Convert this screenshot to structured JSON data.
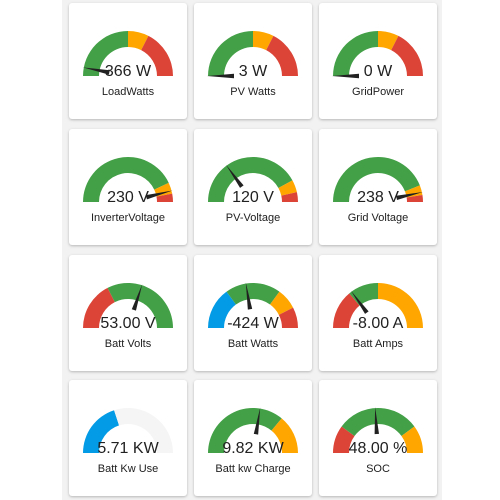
{
  "colors": {
    "green": "#43a047",
    "yellow": "#ffa600",
    "red": "#db4437",
    "blue": "#039be5",
    "empty": "#f5f5f5",
    "needle": "#212121"
  },
  "gauges": [
    {
      "label": "LoadWatts",
      "value_text": "366 W",
      "needle_fraction": 0.06,
      "segments": [
        [
          "green",
          0,
          0.5
        ],
        [
          "yellow",
          0.5,
          0.65
        ],
        [
          "red",
          0.65,
          1
        ]
      ]
    },
    {
      "label": "PV Watts",
      "value_text": "3 W",
      "needle_fraction": 0.0,
      "segments": [
        [
          "green",
          0,
          0.5
        ],
        [
          "yellow",
          0.5,
          0.65
        ],
        [
          "red",
          0.65,
          1
        ]
      ]
    },
    {
      "label": "GridPower",
      "value_text": "0 W",
      "needle_fraction": 0.0,
      "segments": [
        [
          "green",
          0,
          0.5
        ],
        [
          "yellow",
          0.5,
          0.65
        ],
        [
          "red",
          0.65,
          1
        ]
      ]
    },
    {
      "label": "InverterVoltage",
      "value_text": "230 V",
      "needle_fraction": 0.92,
      "segments": [
        [
          "green",
          0,
          0.86
        ],
        [
          "yellow",
          0.86,
          0.94
        ],
        [
          "red",
          0.94,
          1
        ]
      ]
    },
    {
      "label": "PV-Voltage",
      "value_text": "120 V",
      "needle_fraction": 0.3,
      "segments": [
        [
          "green",
          0,
          0.84
        ],
        [
          "yellow",
          0.84,
          0.93
        ],
        [
          "red",
          0.93,
          1
        ]
      ]
    },
    {
      "label": "Grid Voltage",
      "value_text": "238 V",
      "needle_fraction": 0.93,
      "segments": [
        [
          "green",
          0,
          0.88
        ],
        [
          "yellow",
          0.88,
          0.95
        ],
        [
          "red",
          0.95,
          1
        ]
      ]
    },
    {
      "label": "Batt Volts",
      "value_text": "53.00 V",
      "needle_fraction": 0.6,
      "segments": [
        [
          "red",
          0,
          0.35
        ],
        [
          "green",
          0.35,
          1
        ]
      ]
    },
    {
      "label": "Batt Watts",
      "value_text": "-424 W",
      "needle_fraction": 0.45,
      "segments": [
        [
          "blue",
          0,
          0.3
        ],
        [
          "green",
          0.3,
          0.7
        ],
        [
          "yellow",
          0.7,
          0.85
        ],
        [
          "red",
          0.85,
          1
        ]
      ]
    },
    {
      "label": "Batt Amps",
      "value_text": "-8.00 A",
      "needle_fraction": 0.3,
      "segments": [
        [
          "red",
          0,
          0.28
        ],
        [
          "green",
          0.28,
          0.5
        ],
        [
          "yellow",
          0.5,
          1
        ]
      ]
    },
    {
      "label": "Batt Kw Use",
      "value_text": "5.71 KW",
      "needle_fraction": null,
      "segments": [
        [
          "blue",
          0,
          0.4
        ],
        [
          "empty",
          0.4,
          1
        ]
      ]
    },
    {
      "label": "Batt kw Charge",
      "value_text": "9.82 KW",
      "needle_fraction": 0.55,
      "segments": [
        [
          "green",
          0,
          0.72
        ],
        [
          "yellow",
          0.72,
          1
        ]
      ]
    },
    {
      "label": "SOC",
      "value_text": "48.00 %",
      "needle_fraction": 0.48,
      "segments": [
        [
          "red",
          0,
          0.2
        ],
        [
          "green",
          0.2,
          0.8
        ],
        [
          "yellow",
          0.8,
          1
        ]
      ]
    }
  ]
}
